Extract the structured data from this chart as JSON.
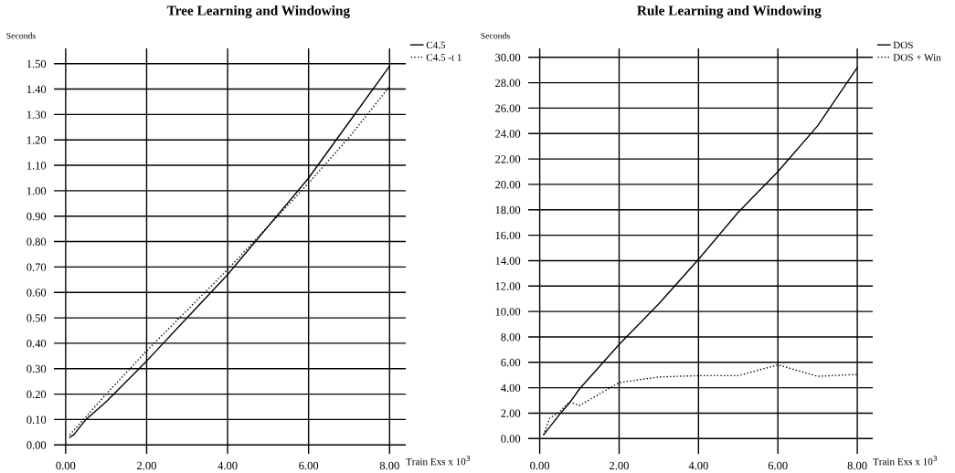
{
  "chart_data": [
    {
      "type": "line",
      "title": "Tree Learning and Windowing",
      "xlabel": "Train Exs x 10$^{3}$",
      "ylabel": "Seconds",
      "xlim": [
        -0.29,
        8.4
      ],
      "ylim": [
        -0.035,
        1.56
      ],
      "xticks": [
        {
          "value": 0,
          "label": "0.00"
        },
        {
          "value": 2,
          "label": "2.00"
        },
        {
          "value": 4,
          "label": "4.00"
        },
        {
          "value": 6,
          "label": "6.00"
        },
        {
          "value": 8,
          "label": "8.00"
        }
      ],
      "yticks": [
        {
          "value": 0,
          "label": "0.00"
        },
        {
          "value": 0.1,
          "label": "0.10"
        },
        {
          "value": 0.2,
          "label": "0.20"
        },
        {
          "value": 0.3,
          "label": "0.30"
        },
        {
          "value": 0.4,
          "label": "0.40"
        },
        {
          "value": 0.5,
          "label": "0.50"
        },
        {
          "value": 0.6,
          "label": "0.60"
        },
        {
          "value": 0.7,
          "label": "0.70"
        },
        {
          "value": 0.8,
          "label": "0.80"
        },
        {
          "value": 0.9,
          "label": "0.90"
        },
        {
          "value": 1.0,
          "label": "1.00"
        },
        {
          "value": 1.1,
          "label": "1.10"
        },
        {
          "value": 1.2,
          "label": "1.20"
        },
        {
          "value": 1.3,
          "label": "1.30"
        },
        {
          "value": 1.4,
          "label": "1.40"
        },
        {
          "value": 1.5,
          "label": "1.50"
        }
      ],
      "grid": true,
      "legend": "top right",
      "series": [
        {
          "name": "C4.5",
          "color": "#000000",
          "line_style": "solid",
          "x": [
            0.1,
            0.2,
            0.5,
            1.0,
            2.0,
            3.0,
            4.0,
            5.0,
            6.0,
            7.0,
            8.0
          ],
          "values": [
            0.03,
            0.04,
            0.1,
            0.17,
            0.33,
            0.5,
            0.67,
            0.86,
            1.05,
            1.27,
            1.49
          ]
        },
        {
          "name": "C4.5 -t 1",
          "color": "#000000",
          "line_style": "dotted",
          "x": [
            0.1,
            0.5,
            1.0,
            2.0,
            3.0,
            4.0,
            5.0,
            6.0,
            7.0,
            8.0
          ],
          "values": [
            0.04,
            0.11,
            0.2,
            0.37,
            0.53,
            0.69,
            0.86,
            1.03,
            1.21,
            1.41
          ]
        }
      ]
    },
    {
      "type": "line",
      "title": "Rule Learning and Windowing",
      "xlabel": "Train Exs x 10$^{3}$",
      "ylabel": "Seconds",
      "xlim": [
        -0.29,
        8.39
      ],
      "ylim": [
        -1.2,
        30.7
      ],
      "xticks": [
        {
          "value": 0,
          "label": "0.00"
        },
        {
          "value": 2,
          "label": "2.00"
        },
        {
          "value": 4,
          "label": "4.00"
        },
        {
          "value": 6,
          "label": "6.00"
        },
        {
          "value": 8,
          "label": "8.00"
        }
      ],
      "yticks": [
        {
          "value": 0,
          "label": "0.00"
        },
        {
          "value": 2,
          "label": "2.00"
        },
        {
          "value": 4,
          "label": "4.00"
        },
        {
          "value": 6,
          "label": "6.00"
        },
        {
          "value": 8,
          "label": "8.00"
        },
        {
          "value": 10,
          "label": "10.00"
        },
        {
          "value": 12,
          "label": "12.00"
        },
        {
          "value": 14,
          "label": "14.00"
        },
        {
          "value": 16,
          "label": "16.00"
        },
        {
          "value": 18,
          "label": "18.00"
        },
        {
          "value": 20,
          "label": "20.00"
        },
        {
          "value": 22,
          "label": "22.00"
        },
        {
          "value": 24,
          "label": "24.00"
        },
        {
          "value": 26,
          "label": "26.00"
        },
        {
          "value": 28,
          "label": "28.00"
        },
        {
          "value": 30,
          "label": "30.00"
        }
      ],
      "grid": true,
      "legend": "top right",
      "series": [
        {
          "name": "DOS",
          "color": "#000000",
          "line_style": "solid",
          "x": [
            0.1,
            0.5,
            0.75,
            1.0,
            2.0,
            3.0,
            4.0,
            5.0,
            6.0,
            7.0,
            8.0
          ],
          "values": [
            0.3,
            1.9,
            2.8,
            3.9,
            7.4,
            10.6,
            14.1,
            17.8,
            21.0,
            24.6,
            29.2
          ]
        },
        {
          "name": "DOS + Win",
          "color": "#000000",
          "line_style": "dotted",
          "x": [
            0.1,
            0.25,
            0.5,
            0.75,
            1.0,
            2.0,
            3.0,
            4.0,
            5.0,
            6.0,
            7.0,
            8.0
          ],
          "values": [
            0.3,
            1.6,
            2.1,
            2.9,
            2.6,
            4.4,
            4.85,
            4.95,
            4.95,
            5.8,
            4.9,
            5.05
          ]
        }
      ]
    }
  ]
}
